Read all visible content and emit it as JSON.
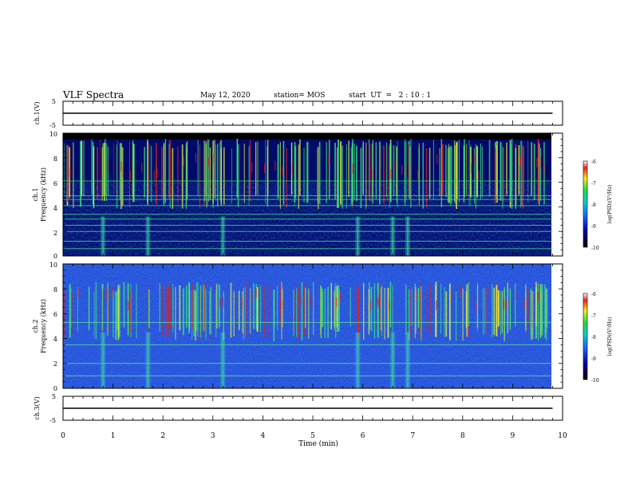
{
  "header": {
    "title": "VLF Spectra",
    "date": "May 12, 2020",
    "station": "station= MOS",
    "start_ut": "start  UT  =   2 : 10 : 1"
  },
  "panels": {
    "ch1v": {
      "ylabel": "ch.1(V)",
      "ticks": [
        "5",
        "-5"
      ]
    },
    "ch1": {
      "ylabel_a": "ch.1",
      "ylabel_b": "Frequency  (kHz)",
      "ticks": [
        "10",
        "8",
        "6",
        "4",
        "2",
        "0"
      ]
    },
    "ch2": {
      "ylabel_a": "ch.2",
      "ylabel_b": "Frequency  (kHz)",
      "ticks": [
        "10",
        "8",
        "6",
        "4",
        "2",
        "0"
      ]
    },
    "ch3v": {
      "ylabel": "ch.3(V)",
      "ticks": [
        "5",
        "-5"
      ]
    }
  },
  "xaxis": {
    "label": "Time  (min)",
    "ticks": [
      "0",
      "1",
      "2",
      "3",
      "4",
      "5",
      "6",
      "7",
      "8",
      "9",
      "10"
    ]
  },
  "colorbar": {
    "label": "log(PSD)(V²/Hz)",
    "ticks": [
      "-6",
      "-7",
      "-8",
      "-9",
      "-10"
    ]
  },
  "colors": {
    "background": "#ffffff",
    "saturated_top_band": "#000000",
    "spectrogram_base_ch1": "#000a6a",
    "spectrogram_base_ch2": "#2750d8",
    "burst_green": "#3de07a",
    "burst_yellow": "#e8f03a",
    "burst_red": "#e02020",
    "trace": "#000000"
  },
  "chart_data": {
    "type": "heatmap",
    "title": "VLF Spectra",
    "xlabel": "Time  (min)",
    "xlim": [
      0,
      10
    ],
    "data_end_min": 9.8,
    "panels": [
      {
        "name": "ch.1(V)",
        "kind": "waveform",
        "ylim": [
          -5,
          5
        ],
        "value_v": 0
      },
      {
        "name": "ch.1",
        "kind": "spectrogram",
        "ylabel": "Frequency  (kHz)",
        "ylim": [
          0,
          10
        ],
        "saturated_band_khz": [
          9.5,
          10
        ],
        "burst_band_khz": [
          5.0,
          9.0
        ],
        "horizontal_lines_khz": [
          0.6,
          1.2,
          2.0,
          2.5,
          3.0,
          3.4,
          4.1,
          4.6,
          4.9,
          6.1
        ]
      },
      {
        "name": "ch.2",
        "kind": "spectrogram",
        "ylabel": "Frequency  (kHz)",
        "ylim": [
          0,
          10
        ],
        "burst_band_khz": [
          5.0,
          8.0
        ],
        "horizontal_lines_khz": [
          1.0,
          2.0,
          3.5,
          5.3
        ]
      },
      {
        "name": "ch.3(V)",
        "kind": "waveform",
        "ylim": [
          -5,
          5
        ],
        "value_v": 0
      }
    ],
    "broadband_columns_min": [
      0.8,
      1.7,
      3.2,
      5.9,
      6.6,
      6.9
    ],
    "colorbar": {
      "label": "log(PSD)(V²/Hz)",
      "range": [
        -10,
        -6
      ]
    }
  }
}
